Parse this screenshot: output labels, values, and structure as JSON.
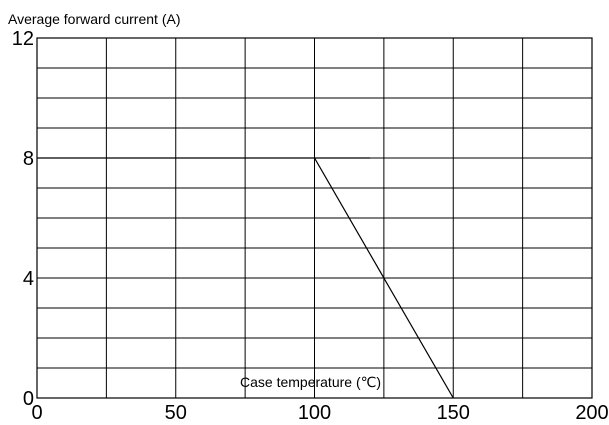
{
  "chart_data": {
    "type": "line",
    "ylabel": "Average forward current (A)",
    "xlabel": "Case temperature (℃)",
    "xlim": [
      0,
      200
    ],
    "ylim": [
      0,
      12
    ],
    "x_ticks": [
      "0",
      "50",
      "100",
      "150",
      "200"
    ],
    "y_ticks": [
      "0",
      "4",
      "8",
      "12"
    ],
    "grid": true,
    "series": [
      {
        "x": [
          0,
          100,
          150
        ],
        "y": [
          8,
          8,
          0
        ]
      }
    ],
    "reference_lines": [
      {
        "x": [
          100,
          120
        ],
        "y": [
          8,
          8
        ]
      }
    ]
  }
}
